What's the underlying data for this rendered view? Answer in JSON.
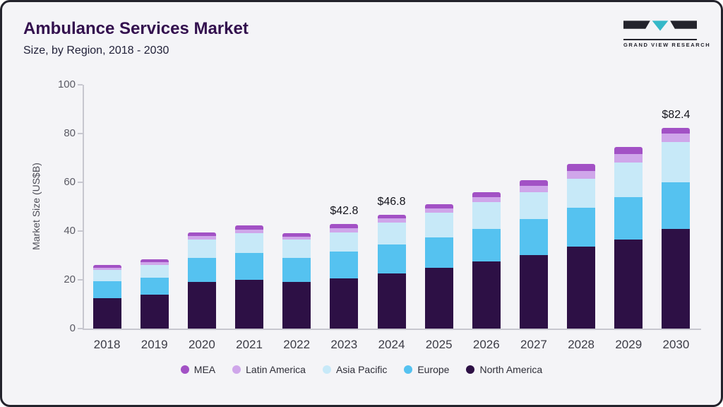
{
  "header": {
    "title": "Ambulance Services Market",
    "subtitle": "Size, by Region, 2018 - 2030",
    "logo_text": "GRAND VIEW RESEARCH"
  },
  "chart_data": {
    "type": "bar",
    "stacked": true,
    "title": "Ambulance Services Market Size, by Region, 2018 - 2030",
    "xlabel": "",
    "ylabel": "Market Size (US$B)",
    "ylim": [
      0,
      100
    ],
    "yticks": [
      0,
      20,
      40,
      60,
      80,
      100
    ],
    "grid": false,
    "legend_position": "bottom",
    "categories": [
      "2018",
      "2019",
      "2020",
      "2021",
      "2022",
      "2023",
      "2024",
      "2025",
      "2026",
      "2027",
      "2028",
      "2029",
      "2030"
    ],
    "series": [
      {
        "name": "North America",
        "color": "#2d1045",
        "values": [
          12.5,
          14,
          19,
          20,
          19,
          20.5,
          22.5,
          25,
          27.5,
          30,
          33.5,
          36.5,
          41
        ]
      },
      {
        "name": "Europe",
        "color": "#55c2f0",
        "values": [
          7,
          7,
          10,
          11,
          10,
          11,
          12,
          12.5,
          13.5,
          15,
          16,
          17.5,
          19
        ]
      },
      {
        "name": "Asia Pacific",
        "color": "#c7e9f8",
        "values": [
          4.5,
          5,
          7.5,
          8,
          7.5,
          8,
          9,
          10,
          11,
          11,
          12,
          14,
          16.5
        ]
      },
      {
        "name": "Latin America",
        "color": "#cfa6ea",
        "values": [
          1,
          1.2,
          1.5,
          1.5,
          1.3,
          1.6,
          1.6,
          1.7,
          2,
          2.5,
          3,
          3.5,
          3.5
        ]
      },
      {
        "name": "MEA",
        "color": "#a251c5",
        "values": [
          1,
          1.3,
          1.5,
          1.7,
          1.3,
          1.7,
          1.7,
          1.8,
          2,
          2.5,
          3,
          3,
          2.4
        ]
      }
    ],
    "annotations": [
      {
        "category": "2023",
        "label": "$42.8"
      },
      {
        "category": "2024",
        "label": "$46.8"
      },
      {
        "category": "2030",
        "label": "$82.4"
      }
    ],
    "legend": [
      "MEA",
      "Latin America",
      "Asia Pacific",
      "Europe",
      "North America"
    ]
  }
}
